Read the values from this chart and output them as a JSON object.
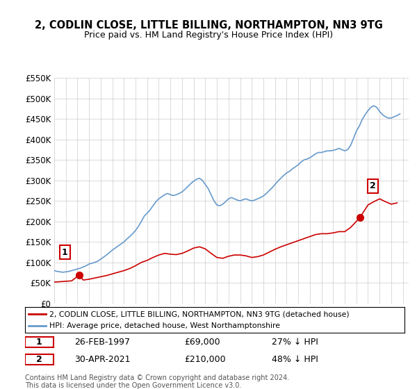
{
  "title": "2, CODLIN CLOSE, LITTLE BILLING, NORTHAMPTON, NN3 9TG",
  "subtitle": "Price paid vs. HM Land Registry's House Price Index (HPI)",
  "ylabel_ticks": [
    "£0",
    "£50K",
    "£100K",
    "£150K",
    "£200K",
    "£250K",
    "£300K",
    "£350K",
    "£400K",
    "£450K",
    "£500K",
    "£550K"
  ],
  "ylim": [
    0,
    550000
  ],
  "xlim_start": 1995.0,
  "xlim_end": 2025.5,
  "legend_line1": "2, CODLIN CLOSE, LITTLE BILLING, NORTHAMPTON, NN3 9TG (detached house)",
  "legend_line2": "HPI: Average price, detached house, West Northamptonshire",
  "sale1_date": "26-FEB-1997",
  "sale1_price": "£69,000",
  "sale1_pct": "27% ↓ HPI",
  "sale1_x": 1997.15,
  "sale1_y": 69000,
  "sale2_date": "30-APR-2021",
  "sale2_price": "£210,000",
  "sale2_pct": "48% ↓ HPI",
  "sale2_x": 2021.33,
  "sale2_y": 210000,
  "footer": "Contains HM Land Registry data © Crown copyright and database right 2024.\nThis data is licensed under the Open Government Licence v3.0.",
  "red_color": "#cc0000",
  "blue_color": "#6699cc",
  "background_color": "#ffffff",
  "hpi_x": [
    1995.0,
    1995.25,
    1995.5,
    1995.75,
    1996.0,
    1996.25,
    1996.5,
    1996.75,
    1997.0,
    1997.25,
    1997.5,
    1997.75,
    1998.0,
    1998.25,
    1998.5,
    1998.75,
    1999.0,
    1999.25,
    1999.5,
    1999.75,
    2000.0,
    2000.25,
    2000.5,
    2000.75,
    2001.0,
    2001.25,
    2001.5,
    2001.75,
    2002.0,
    2002.25,
    2002.5,
    2002.75,
    2003.0,
    2003.25,
    2003.5,
    2003.75,
    2004.0,
    2004.25,
    2004.5,
    2004.75,
    2005.0,
    2005.25,
    2005.5,
    2005.75,
    2006.0,
    2006.25,
    2006.5,
    2006.75,
    2007.0,
    2007.25,
    2007.5,
    2007.75,
    2008.0,
    2008.25,
    2008.5,
    2008.75,
    2009.0,
    2009.25,
    2009.5,
    2009.75,
    2010.0,
    2010.25,
    2010.5,
    2010.75,
    2011.0,
    2011.25,
    2011.5,
    2011.75,
    2012.0,
    2012.25,
    2012.5,
    2012.75,
    2013.0,
    2013.25,
    2013.5,
    2013.75,
    2014.0,
    2014.25,
    2014.5,
    2014.75,
    2015.0,
    2015.25,
    2015.5,
    2015.75,
    2016.0,
    2016.25,
    2016.5,
    2016.75,
    2017.0,
    2017.25,
    2017.5,
    2017.75,
    2018.0,
    2018.25,
    2018.5,
    2018.75,
    2019.0,
    2019.25,
    2019.5,
    2019.75,
    2020.0,
    2020.25,
    2020.5,
    2020.75,
    2021.0,
    2021.25,
    2021.5,
    2021.75,
    2022.0,
    2022.25,
    2022.5,
    2022.75,
    2023.0,
    2023.25,
    2023.5,
    2023.75,
    2024.0,
    2024.25,
    2024.5,
    2024.75
  ],
  "hpi_y": [
    80000,
    78000,
    77000,
    76000,
    77000,
    78000,
    80000,
    82000,
    84000,
    86000,
    89000,
    92000,
    96000,
    98000,
    100000,
    103000,
    108000,
    113000,
    118000,
    124000,
    130000,
    135000,
    140000,
    145000,
    150000,
    157000,
    163000,
    170000,
    178000,
    188000,
    200000,
    213000,
    220000,
    228000,
    238000,
    248000,
    255000,
    260000,
    265000,
    268000,
    265000,
    263000,
    265000,
    268000,
    272000,
    278000,
    285000,
    292000,
    298000,
    303000,
    305000,
    300000,
    290000,
    280000,
    265000,
    250000,
    240000,
    238000,
    242000,
    248000,
    255000,
    258000,
    255000,
    252000,
    250000,
    253000,
    255000,
    252000,
    250000,
    252000,
    255000,
    258000,
    262000,
    268000,
    275000,
    282000,
    290000,
    298000,
    305000,
    312000,
    318000,
    322000,
    328000,
    333000,
    338000,
    345000,
    350000,
    352000,
    355000,
    360000,
    365000,
    368000,
    368000,
    370000,
    372000,
    372000,
    373000,
    375000,
    378000,
    375000,
    372000,
    375000,
    385000,
    402000,
    420000,
    432000,
    448000,
    460000,
    470000,
    478000,
    482000,
    478000,
    468000,
    460000,
    455000,
    452000,
    452000,
    455000,
    458000,
    462000
  ],
  "red_x": [
    1995.0,
    1995.5,
    1996.0,
    1996.5,
    1997.15,
    1997.5,
    1998.0,
    1998.5,
    1999.0,
    1999.5,
    2000.0,
    2000.5,
    2001.0,
    2001.5,
    2002.0,
    2002.5,
    2003.0,
    2003.5,
    2004.0,
    2004.5,
    2005.0,
    2005.5,
    2006.0,
    2006.5,
    2007.0,
    2007.5,
    2008.0,
    2008.5,
    2009.0,
    2009.5,
    2010.0,
    2010.5,
    2011.0,
    2011.5,
    2012.0,
    2012.5,
    2013.0,
    2013.5,
    2014.0,
    2014.5,
    2015.0,
    2015.5,
    2016.0,
    2016.5,
    2017.0,
    2017.5,
    2018.0,
    2018.5,
    2019.0,
    2019.5,
    2020.0,
    2020.5,
    2021.33,
    2021.5,
    2022.0,
    2022.5,
    2023.0,
    2023.5,
    2024.0,
    2024.5
  ],
  "red_y": [
    52000,
    53000,
    54000,
    55000,
    69000,
    57000,
    59000,
    62000,
    65000,
    68000,
    72000,
    76000,
    80000,
    85000,
    92000,
    100000,
    105000,
    112000,
    118000,
    122000,
    120000,
    119000,
    122000,
    128000,
    135000,
    138000,
    133000,
    122000,
    112000,
    110000,
    115000,
    118000,
    118000,
    116000,
    112000,
    114000,
    118000,
    125000,
    132000,
    138000,
    143000,
    148000,
    153000,
    158000,
    163000,
    168000,
    170000,
    170000,
    172000,
    175000,
    175000,
    185000,
    210000,
    218000,
    240000,
    248000,
    255000,
    248000,
    242000,
    245000
  ]
}
